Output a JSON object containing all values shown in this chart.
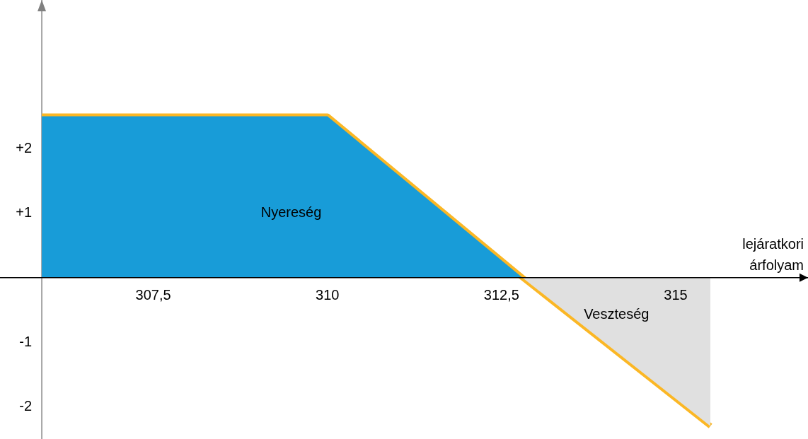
{
  "chart_data": {
    "type": "area",
    "xlabel": "lejáratkori árfolyam",
    "xlim": [
      305.3,
      316.9
    ],
    "ylim": [
      -2.5,
      4.3
    ],
    "xticks": [
      {
        "value": 307.5,
        "label": "307,5"
      },
      310,
      {
        "value": 312.5,
        "label": "312,5"
      },
      315
    ],
    "yticks": [
      {
        "value": 2,
        "label": "+2"
      },
      {
        "value": 1,
        "label": "+1"
      },
      -1,
      -2
    ],
    "legend": false,
    "series": [
      {
        "name": "Nyereség",
        "color": "#189cd8",
        "x": [
          305.9,
          310,
          312.8
        ],
        "values": [
          2.5,
          2.5,
          0
        ]
      },
      {
        "name": "Veszteség",
        "color": "#e0e0e0",
        "x": [
          312.8,
          315.5
        ],
        "values": [
          0,
          -2.3
        ]
      },
      {
        "type": "line",
        "color": "#fbb725",
        "x": [
          305.9,
          310,
          312.8,
          315.5
        ],
        "values": [
          2.5,
          2.5,
          0,
          -2.3
        ]
      }
    ]
  }
}
